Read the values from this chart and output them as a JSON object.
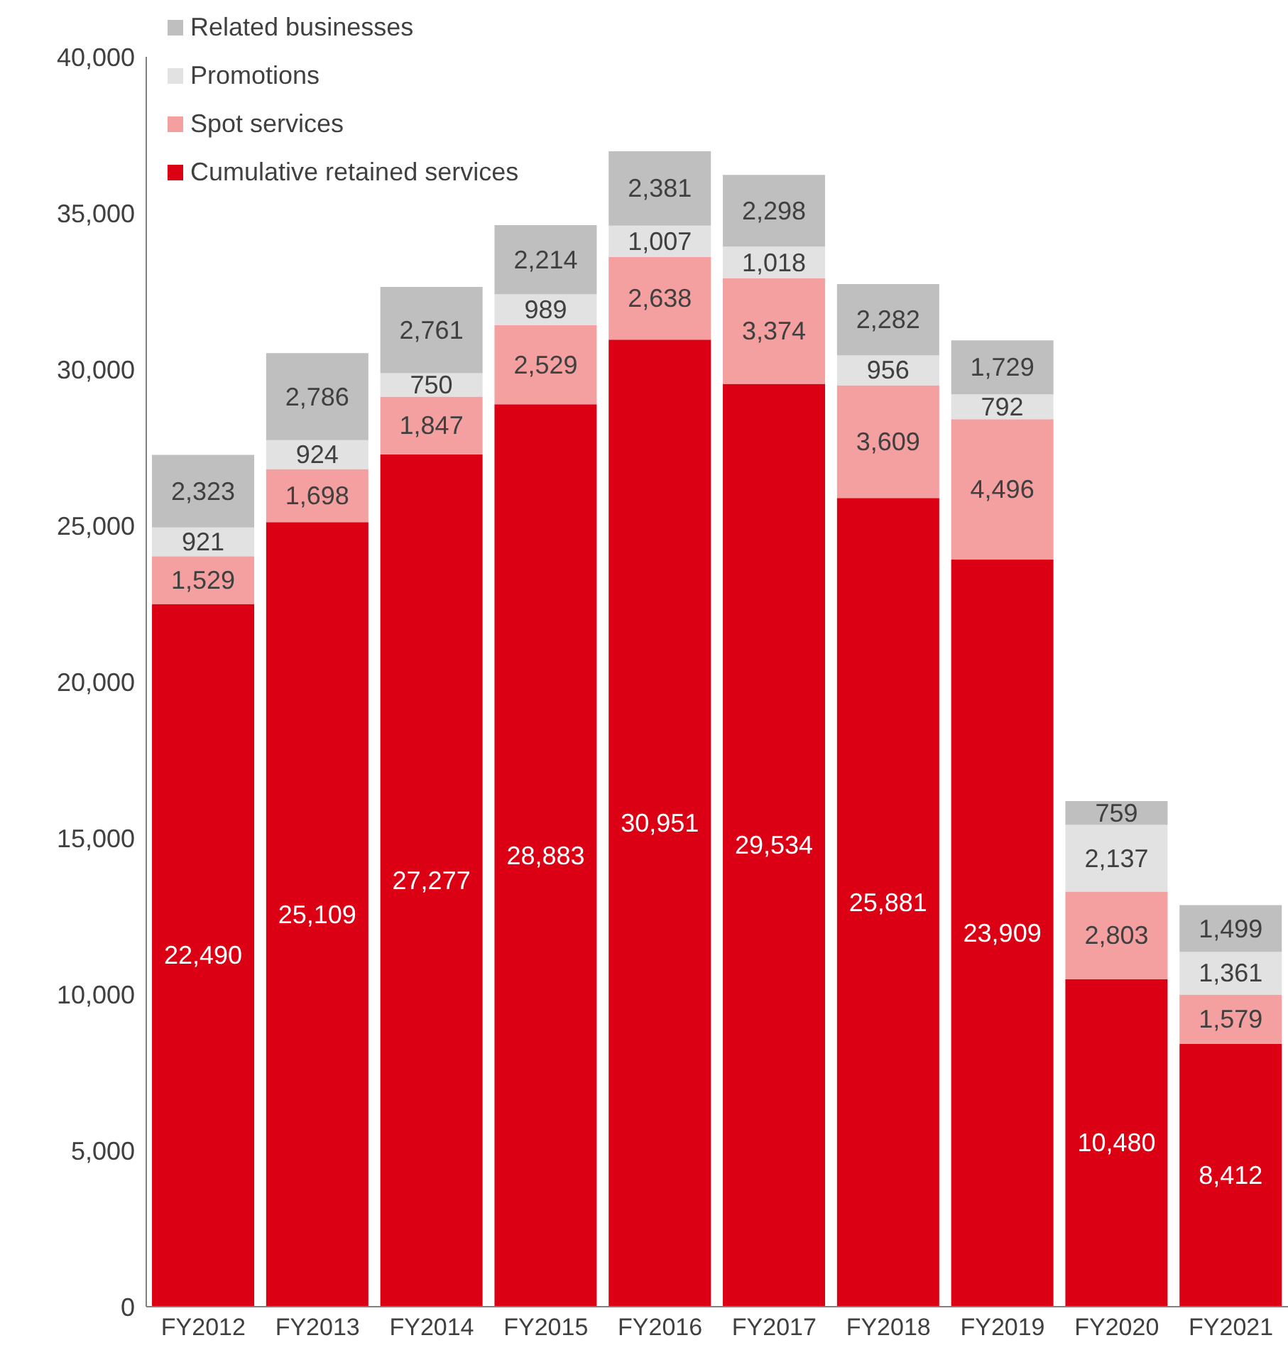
{
  "chart_data": {
    "type": "bar",
    "stacked": true,
    "categories": [
      "FY2012",
      "FY2013",
      "FY2014",
      "FY2015",
      "FY2016",
      "FY2017",
      "FY2018",
      "FY2019",
      "FY2020",
      "FY2021"
    ],
    "series": [
      {
        "name": "Cumulative retained services",
        "color": "#dc0014",
        "values": [
          22490,
          25109,
          27277,
          28883,
          30951,
          29534,
          25881,
          23909,
          10480,
          8412
        ],
        "value_labels": [
          "22,490",
          "25,109",
          "27,277",
          "28,883",
          "30,951",
          "29,534",
          "25,881",
          "23,909",
          "10,480",
          "8,412"
        ]
      },
      {
        "name": "Spot services",
        "color": "#f4a0a0",
        "values": [
          1529,
          1698,
          1847,
          2529,
          2638,
          3374,
          3609,
          4496,
          2803,
          1579
        ],
        "value_labels": [
          "1,529",
          "1,698",
          "1,847",
          "2,529",
          "2,638",
          "3,374",
          "3,609",
          "4,496",
          "2,803",
          "1,579"
        ]
      },
      {
        "name": "Promotions",
        "color": "#e2e2e2",
        "values": [
          921,
          924,
          750,
          989,
          1007,
          1018,
          956,
          792,
          2137,
          1361
        ],
        "value_labels": [
          "921",
          "924",
          "750",
          "989",
          "1,007",
          "1,018",
          "956",
          "792",
          "2,137",
          "1,361"
        ]
      },
      {
        "name": "Related businesses",
        "color": "#bfbfbf",
        "values": [
          2323,
          2786,
          2761,
          2214,
          2381,
          2298,
          2282,
          1729,
          759,
          1499
        ],
        "value_labels": [
          "2,323",
          "2,786",
          "2,761",
          "2,214",
          "2,381",
          "2,298",
          "2,282",
          "1,729",
          "759",
          "1,499"
        ]
      }
    ],
    "ylim": [
      0,
      40000
    ],
    "yticks": [
      0,
      {
        "value": 5000,
        "label": "5,000"
      },
      {
        "value": 10000,
        "label": "10,000"
      },
      {
        "value": 15000,
        "label": "15,000"
      },
      {
        "value": 20000,
        "label": "20,000"
      },
      {
        "value": 25000,
        "label": "25,000"
      },
      {
        "value": 30000,
        "label": "30,000"
      },
      {
        "value": 35000,
        "label": "35,000"
      },
      {
        "value": 40000,
        "label": "40,000"
      }
    ],
    "legend": "top left",
    "grid": false
  }
}
